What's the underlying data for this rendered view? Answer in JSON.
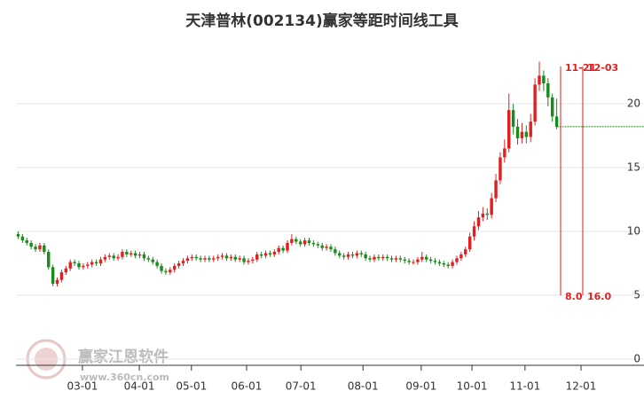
{
  "chart_data": {
    "type": "candlestick",
    "title": "天津普林(002134)赢家等距时间线工具",
    "open": [
      9.8,
      9.6,
      9.3,
      9.1,
      8.8,
      8.6,
      8.9,
      8.4,
      7.2,
      5.9,
      6.2,
      6.8,
      7.1,
      7.6,
      7.5,
      7.2,
      7.3,
      7.4,
      7.6,
      7.5,
      7.8,
      8.0,
      8.1,
      7.9,
      8.0,
      8.4,
      8.2,
      8.3,
      8.1,
      8.2,
      7.9,
      7.8,
      7.6,
      7.3,
      6.9,
      6.8,
      7.0,
      7.3,
      7.5,
      7.7,
      7.9,
      8.0,
      7.9,
      7.8,
      7.9,
      7.8,
      7.9,
      8.0,
      8.1,
      7.9,
      8.0,
      7.8,
      7.9,
      7.6,
      7.7,
      7.8,
      8.2,
      8.1,
      8.3,
      8.2,
      8.4,
      8.7,
      8.5,
      9.1,
      9.4,
      9.2,
      9.0,
      9.3,
      9.1,
      9.0,
      8.9,
      8.7,
      8.8,
      8.6,
      8.3,
      8.1,
      8.0,
      8.2,
      8.1,
      8.3,
      8.2,
      7.9,
      7.8,
      8.0,
      7.9,
      8.0,
      7.9,
      7.8,
      7.9,
      7.8,
      7.7,
      7.6,
      7.6,
      7.8,
      8.0,
      7.8,
      7.7,
      7.6,
      7.5,
      7.4,
      7.3,
      7.6,
      7.9,
      8.2,
      8.6,
      9.6,
      10.4,
      11.1,
      11.4,
      11.3,
      12.6,
      14.0,
      15.8,
      16.5,
      19.5,
      18.2,
      17.3,
      17.8,
      17.4,
      18.6,
      21.5,
      22.2,
      21.6,
      20.5,
      19.0
    ],
    "high": [
      10.0,
      9.8,
      9.5,
      9.3,
      9.0,
      9.1,
      9.1,
      8.6,
      7.4,
      6.4,
      7.0,
      7.3,
      7.8,
      7.8,
      7.7,
      7.5,
      7.6,
      7.8,
      7.8,
      8.0,
      8.2,
      8.3,
      8.3,
      8.2,
      8.6,
      8.6,
      8.5,
      8.5,
      8.4,
      8.4,
      8.1,
      8.0,
      7.8,
      7.5,
      7.1,
      7.2,
      7.5,
      7.7,
      7.9,
      8.1,
      8.2,
      8.2,
      8.1,
      8.1,
      8.1,
      8.1,
      8.2,
      8.3,
      8.3,
      8.2,
      8.2,
      8.1,
      8.1,
      7.9,
      8.0,
      8.4,
      8.4,
      8.5,
      8.5,
      8.6,
      8.9,
      8.9,
      9.3,
      9.8,
      9.6,
      9.4,
      9.5,
      9.5,
      9.3,
      9.2,
      9.1,
      9.0,
      9.0,
      8.8,
      8.5,
      8.3,
      8.4,
      8.4,
      8.5,
      8.5,
      8.4,
      8.1,
      8.2,
      8.2,
      8.2,
      8.2,
      8.1,
      8.1,
      8.1,
      8.0,
      7.9,
      7.8,
      8.0,
      8.4,
      8.2,
      8.0,
      7.9,
      7.8,
      7.7,
      7.6,
      7.8,
      8.1,
      8.4,
      8.8,
      9.9,
      10.8,
      11.6,
      11.9,
      11.8,
      13.0,
      14.5,
      16.2,
      17.2,
      20.8,
      20.0,
      18.8,
      18.5,
      18.3,
      19.2,
      22.0,
      23.3,
      22.6,
      22.0,
      20.8,
      20.4
    ],
    "low": [
      9.4,
      9.1,
      8.9,
      8.6,
      8.4,
      8.4,
      8.2,
      7.0,
      5.7,
      5.7,
      6.0,
      6.6,
      6.9,
      7.3,
      7.0,
      7.0,
      7.1,
      7.2,
      7.3,
      7.3,
      7.6,
      7.8,
      7.7,
      7.7,
      7.8,
      8.0,
      8.0,
      7.9,
      7.9,
      7.7,
      7.6,
      7.4,
      7.1,
      6.7,
      6.6,
      6.6,
      6.8,
      7.1,
      7.3,
      7.5,
      7.7,
      7.7,
      7.6,
      7.6,
      7.6,
      7.6,
      7.7,
      7.8,
      7.7,
      7.7,
      7.6,
      7.6,
      7.4,
      7.4,
      7.5,
      7.6,
      7.9,
      7.9,
      8.0,
      8.0,
      8.2,
      8.3,
      8.3,
      8.9,
      9.0,
      8.8,
      8.8,
      8.9,
      8.8,
      8.7,
      8.5,
      8.5,
      8.4,
      8.1,
      7.9,
      7.8,
      7.8,
      7.9,
      7.9,
      8.0,
      7.7,
      7.6,
      7.6,
      7.7,
      7.7,
      7.7,
      7.6,
      7.6,
      7.6,
      7.5,
      7.4,
      7.4,
      7.4,
      7.6,
      7.6,
      7.5,
      7.4,
      7.3,
      7.2,
      7.1,
      7.1,
      7.4,
      7.7,
      8.0,
      8.4,
      9.3,
      10.1,
      10.8,
      10.9,
      11.0,
      12.3,
      13.7,
      15.4,
      16.2,
      17.6,
      16.8,
      16.9,
      16.9,
      17.0,
      18.3,
      21.0,
      21.0,
      19.8,
      18.6,
      18.0
    ],
    "close": [
      9.6,
      9.3,
      9.1,
      8.8,
      8.6,
      8.9,
      8.4,
      7.2,
      5.9,
      6.2,
      6.8,
      7.1,
      7.6,
      7.5,
      7.2,
      7.3,
      7.4,
      7.6,
      7.5,
      7.8,
      8.0,
      8.1,
      7.9,
      8.0,
      8.4,
      8.2,
      8.3,
      8.1,
      8.2,
      7.9,
      7.8,
      7.6,
      7.3,
      6.9,
      6.8,
      7.0,
      7.3,
      7.5,
      7.7,
      7.9,
      8.0,
      7.9,
      7.8,
      7.9,
      7.8,
      7.9,
      8.0,
      8.1,
      7.9,
      8.0,
      7.8,
      7.9,
      7.6,
      7.7,
      7.8,
      8.2,
      8.1,
      8.3,
      8.2,
      8.4,
      8.7,
      8.5,
      9.1,
      9.4,
      9.2,
      9.0,
      9.3,
      9.1,
      9.0,
      8.9,
      8.7,
      8.8,
      8.6,
      8.3,
      8.1,
      8.0,
      8.2,
      8.1,
      8.3,
      8.2,
      7.9,
      7.8,
      8.0,
      7.9,
      8.0,
      7.9,
      7.8,
      7.9,
      7.8,
      7.7,
      7.6,
      7.6,
      7.8,
      8.0,
      7.8,
      7.7,
      7.6,
      7.5,
      7.4,
      7.3,
      7.6,
      7.9,
      8.2,
      8.6,
      9.6,
      10.4,
      11.1,
      11.4,
      11.3,
      12.6,
      14.0,
      15.8,
      16.5,
      19.5,
      18.2,
      17.3,
      17.8,
      17.4,
      18.6,
      21.5,
      22.2,
      21.6,
      20.5,
      19.0,
      18.2
    ],
    "up_color": "#e02020",
    "down_color": "#1a8a1a",
    "xlim": [
      -0.5,
      144.1
    ],
    "xticks": [
      {
        "value": 14.8,
        "label": "03-01"
      },
      {
        "value": 27.9,
        "label": "04-01"
      },
      {
        "value": 39.9,
        "label": "05-01"
      },
      {
        "value": 52.6,
        "label": "06-01"
      },
      {
        "value": 65.1,
        "label": "07-01"
      },
      {
        "value": 79.4,
        "label": "08-01"
      },
      {
        "value": 92.8,
        "label": "09-01"
      },
      {
        "value": 104.5,
        "label": "10-01"
      },
      {
        "value": 116.7,
        "label": "11-01"
      },
      {
        "value": 129.6,
        "label": "12-01"
      }
    ],
    "ylim": [
      0,
      25
    ],
    "yticks": [
      0,
      5,
      10,
      15,
      20
    ],
    "grid": true,
    "time_lines": [
      {
        "value": 124.9,
        "date": "11-21",
        "label": "8.0"
      },
      {
        "value": 130.0,
        "date": "12-03",
        "label": "16.0"
      }
    ],
    "watermark": {
      "name": "赢家江恩软件",
      "url": "www.360cn.com"
    }
  }
}
